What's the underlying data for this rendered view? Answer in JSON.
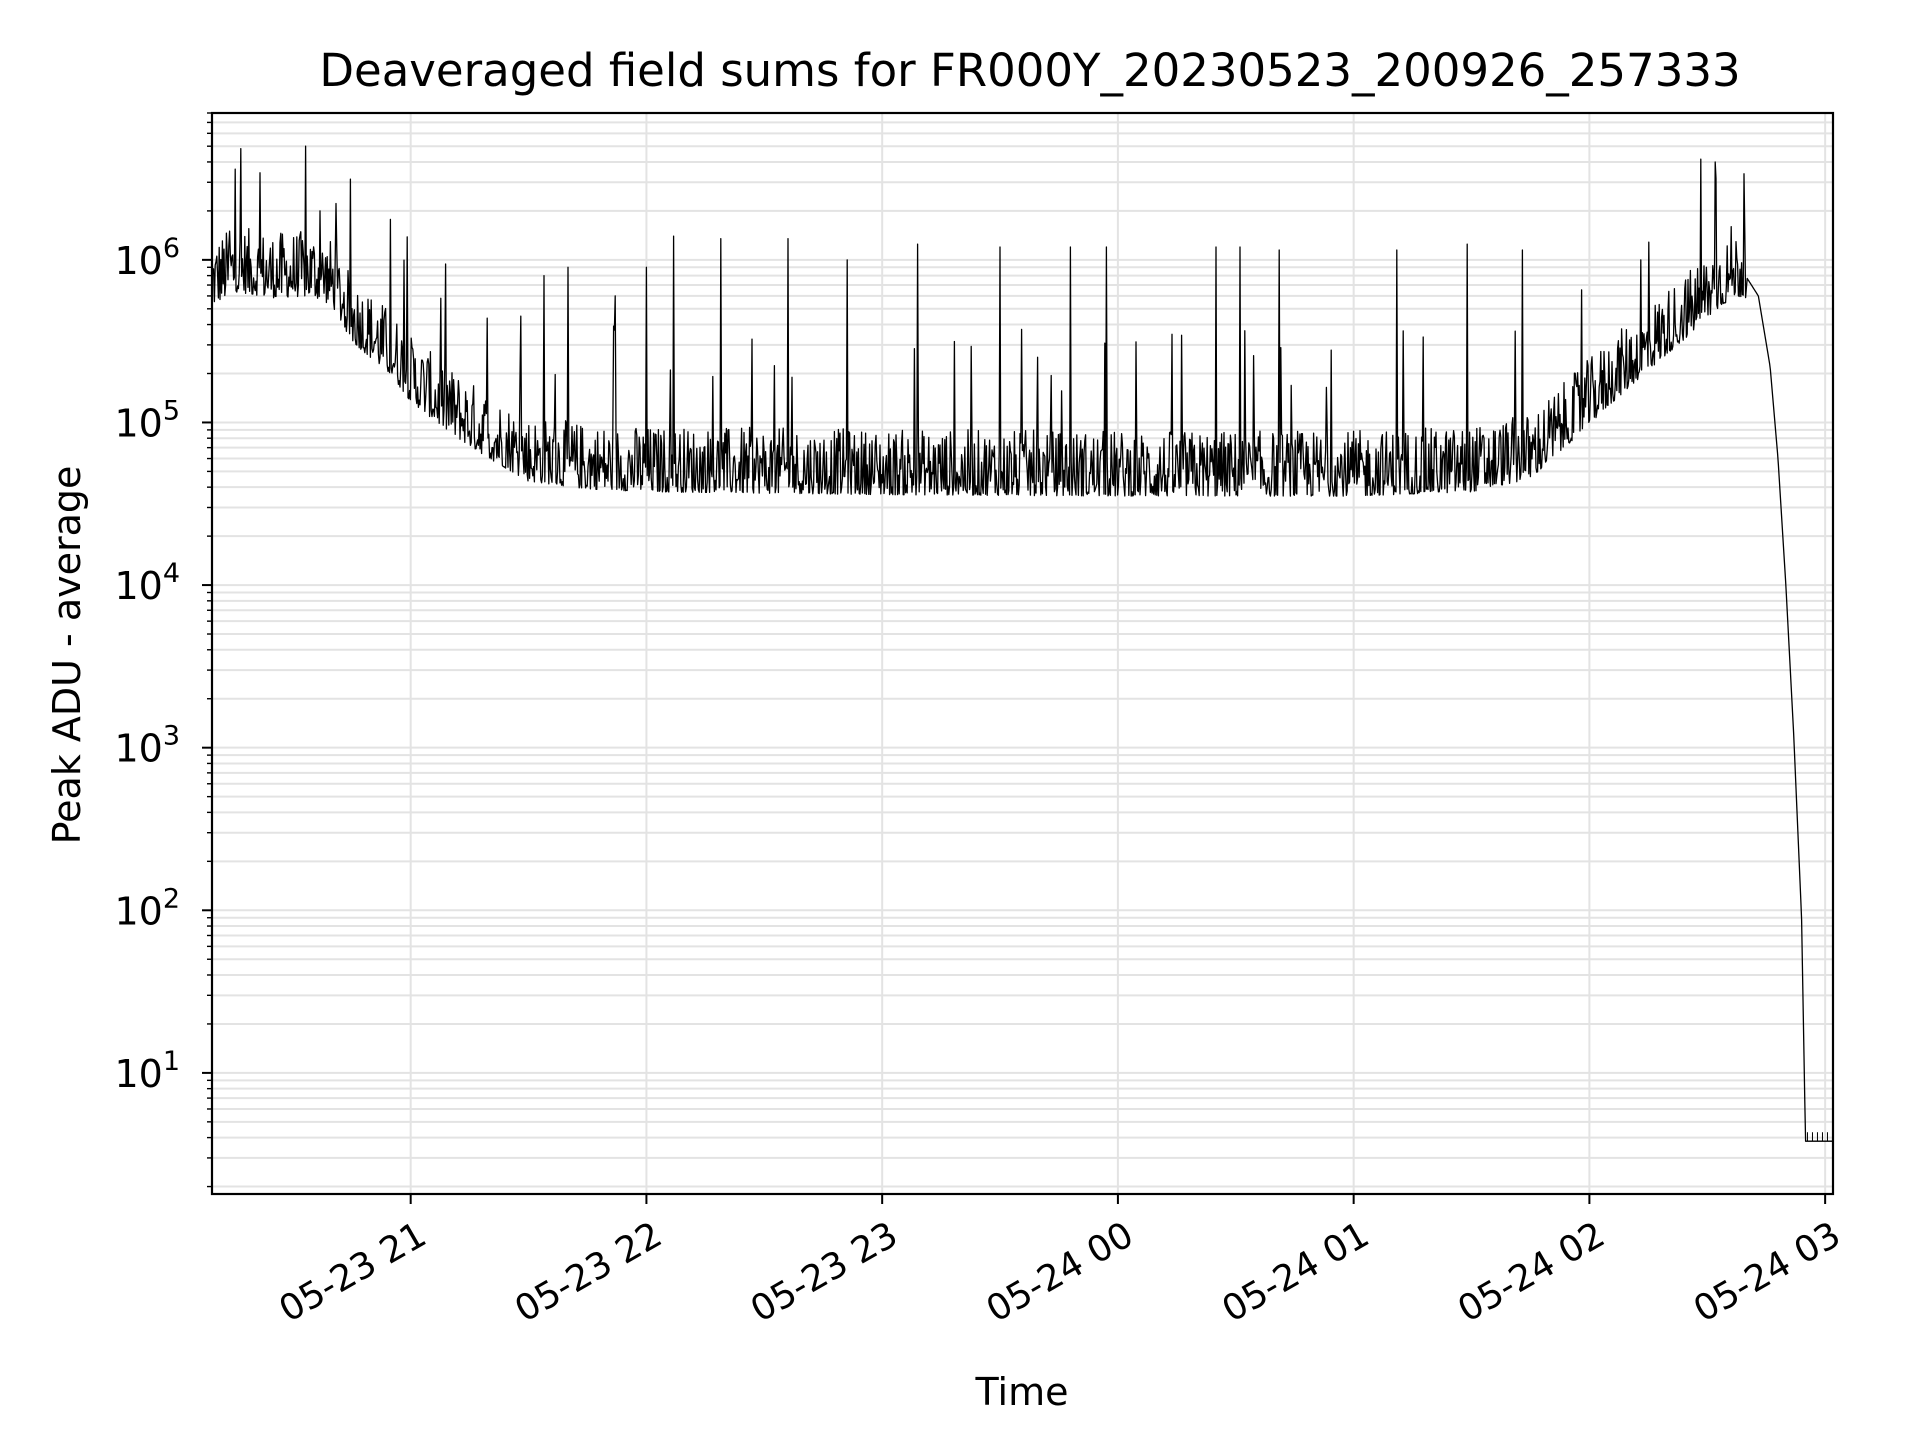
{
  "chart_data": {
    "type": "line",
    "title": "Deaveraged field sums for FR000Y_20230523_200926_257333",
    "xlabel": "Time",
    "ylabel": "Peak ADU - average",
    "x_axis": {
      "type": "time",
      "range": [
        "2023-05-23T20:09:26",
        "2023-05-24T03:02:00"
      ],
      "ticks": [
        {
          "value": "2023-05-23T21:00",
          "label": "05-23 21"
        },
        {
          "value": "2023-05-23T22:00",
          "label": "05-23 22"
        },
        {
          "value": "2023-05-23T23:00",
          "label": "05-23 23"
        },
        {
          "value": "2023-05-24T00:00",
          "label": "05-24 00"
        },
        {
          "value": "2023-05-24T01:00",
          "label": "05-24 01"
        },
        {
          "value": "2023-05-24T02:00",
          "label": "05-24 02"
        },
        {
          "value": "2023-05-24T03:00",
          "label": "05-24 03"
        }
      ]
    },
    "y_axis": {
      "scale": "log",
      "range": [
        1.8,
        8000000
      ],
      "ticks": [
        {
          "value": 10,
          "base": "10",
          "exp": "1"
        },
        {
          "value": 100,
          "base": "10",
          "exp": "2"
        },
        {
          "value": 1000,
          "base": "10",
          "exp": "3"
        },
        {
          "value": 10000,
          "base": "10",
          "exp": "4"
        },
        {
          "value": 100000,
          "base": "10",
          "exp": "5"
        },
        {
          "value": 1000000,
          "base": "10",
          "exp": "6"
        }
      ]
    },
    "grid": true,
    "line_color": "#000000",
    "grid_color": "#e3e3e3",
    "series": [
      {
        "points": [
          [
            "2023-05-23T20:09:26",
            700000
          ],
          [
            "2023-05-23T20:15:00",
            850000
          ],
          [
            "2023-05-23T20:25:00",
            780000
          ],
          [
            "2023-05-23T20:35:00",
            800000
          ],
          [
            "2023-05-23T20:40:00",
            700000
          ],
          [
            "2023-05-23T20:45:00",
            420000
          ],
          [
            "2023-05-23T20:55:00",
            260000
          ],
          [
            "2023-05-23T21:00:00",
            180000
          ],
          [
            "2023-05-23T21:10:00",
            115000
          ],
          [
            "2023-05-23T21:20:00",
            80000
          ],
          [
            "2023-05-23T21:30:00",
            58000
          ],
          [
            "2023-05-23T21:45:00",
            52000
          ],
          [
            "2023-05-23T22:00:00",
            50000
          ],
          [
            "2023-05-23T23:00:00",
            48000
          ],
          [
            "2023-05-24T00:00:00",
            47000
          ],
          [
            "2023-05-24T01:00:00",
            47000
          ],
          [
            "2023-05-24T01:30:00",
            50000
          ],
          [
            "2023-05-24T01:45:00",
            60000
          ],
          [
            "2023-05-24T01:55:00",
            100000
          ],
          [
            "2023-05-24T02:05:00",
            170000
          ],
          [
            "2023-05-24T02:15:00",
            280000
          ],
          [
            "2023-05-24T02:25:00",
            450000
          ],
          [
            "2023-05-24T02:32:00",
            650000
          ],
          [
            "2023-05-24T02:37:00",
            800000
          ],
          [
            "2023-05-24T02:40:00",
            780000
          ],
          [
            "2023-05-24T02:43:00",
            600000
          ],
          [
            "2023-05-24T02:46:00",
            220000
          ],
          [
            "2023-05-24T02:48:00",
            60000
          ],
          [
            "2023-05-24T02:50:00",
            10000
          ],
          [
            "2023-05-24T02:52:00",
            1200
          ],
          [
            "2023-05-24T02:54:00",
            90
          ],
          [
            "2023-05-24T02:55:00",
            3.8
          ],
          [
            "2023-05-24T03:02:00",
            3.8
          ]
        ],
        "noise_band": {
          "from": "2023-05-23T20:09:26",
          "to": "2023-05-24T02:40:00",
          "typical_ratio": [
            0.75,
            1.9
          ]
        },
        "spikes": [
          [
            "2023-05-23T20:14:00",
            1500000
          ],
          [
            "2023-05-23T20:37:00",
            2000000
          ],
          [
            "2023-05-23T21:10:00",
            180000
          ],
          [
            "2023-05-23T21:28:00",
            450000
          ],
          [
            "2023-05-23T21:34:00",
            800000
          ],
          [
            "2023-05-23T21:40:00",
            900000
          ],
          [
            "2023-05-23T21:52:00",
            600000
          ],
          [
            "2023-05-23T22:00:00",
            900000
          ],
          [
            "2023-05-23T22:07:00",
            1400000
          ],
          [
            "2023-05-23T22:19:00",
            1350000
          ],
          [
            "2023-05-23T22:36:00",
            1350000
          ],
          [
            "2023-05-23T22:51:00",
            1000000
          ],
          [
            "2023-05-23T23:09:00",
            1250000
          ],
          [
            "2023-05-23T23:30:00",
            1200000
          ],
          [
            "2023-05-23T23:48:00",
            1200000
          ],
          [
            "2023-05-23T23:57:00",
            1200000
          ],
          [
            "2023-05-24T00:25:00",
            1200000
          ],
          [
            "2023-05-24T00:31:00",
            1200000
          ],
          [
            "2023-05-24T00:41:00",
            1150000
          ],
          [
            "2023-05-24T01:11:00",
            1150000
          ],
          [
            "2023-05-24T01:29:00",
            1250000
          ],
          [
            "2023-05-24T01:43:00",
            1150000
          ],
          [
            "2023-05-24T02:13:00",
            1000000
          ],
          [
            "2023-05-24T02:32:00",
            4000000
          ],
          [
            "2023-05-24T02:36:00",
            1600000
          ]
        ]
      }
    ]
  }
}
